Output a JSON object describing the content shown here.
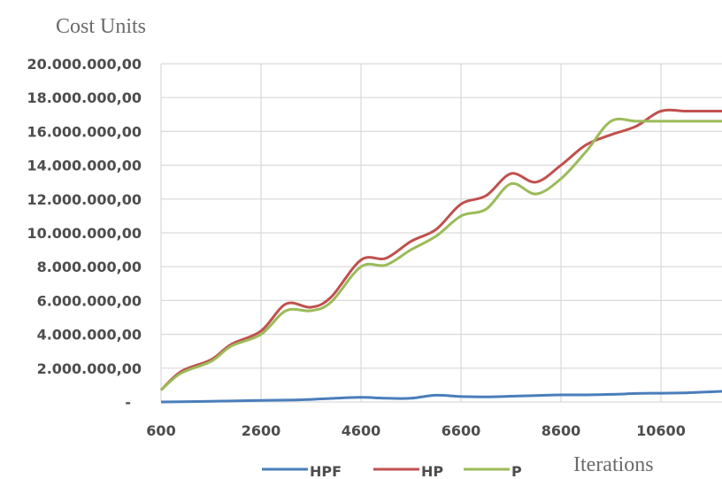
{
  "chart_data": {
    "type": "line",
    "ylabel": "Cost Units",
    "xlabel": "Iterations",
    "xlim": [
      600,
      12600
    ],
    "ylim": [
      0,
      20000000
    ],
    "x_ticks": [
      "600",
      "2600",
      "4600",
      "6600",
      "8600",
      "10600"
    ],
    "y_ticks": [
      "-",
      "2.000.000,00",
      "4.000.000,00",
      "6.000.000,00",
      "8.000.000,00",
      "10.000.000,00",
      "12.000.000,00",
      "14.000.000,00",
      "16.000.000,00",
      "18.000.000,00",
      "20.000.000,00"
    ],
    "grid": true,
    "legend_position": "bottom",
    "x": [
      600,
      1000,
      1600,
      2000,
      2600,
      3100,
      3600,
      4000,
      4600,
      5100,
      5600,
      6100,
      6600,
      7100,
      7600,
      8100,
      8600,
      9100,
      9600,
      10100,
      10600,
      11100,
      11600,
      12100,
      12600
    ],
    "series": [
      {
        "name": "HPF",
        "color": "#4a7ebb",
        "values": [
          0,
          10000,
          40000,
          60000,
          90000,
          110000,
          150000,
          210000,
          270000,
          220000,
          220000,
          400000,
          320000,
          300000,
          340000,
          380000,
          420000,
          420000,
          450000,
          500000,
          520000,
          540000,
          600000,
          650000,
          600000
        ]
      },
      {
        "name": "HP",
        "color": "#c0504d",
        "values": [
          700000,
          1800000,
          2500000,
          3400000,
          4200000,
          5800000,
          5600000,
          6200000,
          8400000,
          8500000,
          9500000,
          10200000,
          11700000,
          12200000,
          13500000,
          13000000,
          14000000,
          15200000,
          15800000,
          16300000,
          17200000,
          17200000,
          17200000,
          17200000,
          17200000
        ]
      },
      {
        "name": "P",
        "color": "#9bbb59",
        "values": [
          700000,
          1700000,
          2400000,
          3300000,
          4000000,
          5400000,
          5400000,
          5900000,
          8000000,
          8100000,
          9000000,
          9800000,
          11000000,
          11400000,
          12900000,
          12300000,
          13200000,
          14800000,
          16600000,
          16600000,
          16600000,
          16600000,
          16600000,
          16600000,
          16600000
        ]
      }
    ]
  }
}
